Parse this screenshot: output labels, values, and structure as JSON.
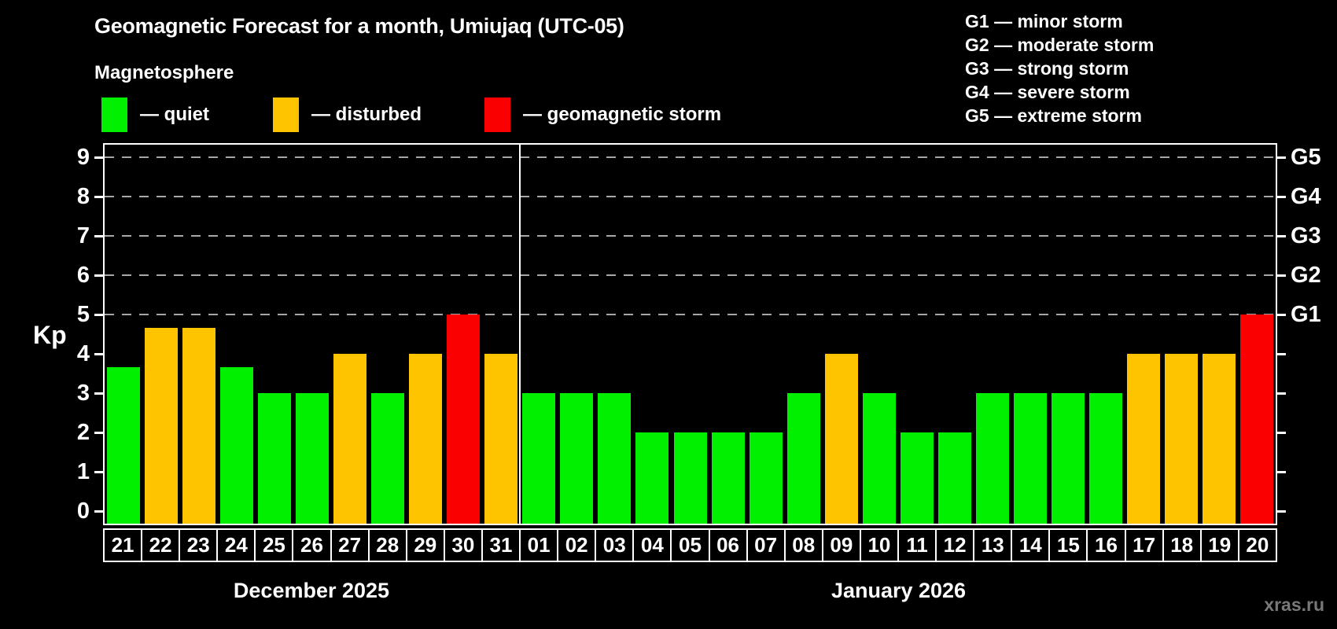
{
  "title": "Geomagnetic Forecast for a month, Umiujaq (UTC-05)",
  "legend": {
    "heading": "Magnetosphere",
    "items": [
      {
        "status": "quiet",
        "label": "— quiet"
      },
      {
        "status": "disturbed",
        "label": "— disturbed"
      },
      {
        "status": "storm",
        "label": "— geomagnetic storm"
      }
    ]
  },
  "g_legend": {
    "items": [
      "G1 — minor storm",
      "G2 — moderate storm",
      "G3 — strong storm",
      "G4 — severe storm",
      "G5 — extreme storm"
    ]
  },
  "axes": {
    "kp_label": "Kp",
    "y_ticks": [
      0,
      1,
      2,
      3,
      4,
      5,
      6,
      7,
      8,
      9
    ],
    "right_axis_labels": [
      {
        "label": "G1",
        "kp": 5
      },
      {
        "label": "G2",
        "kp": 6
      },
      {
        "label": "G3",
        "kp": 7
      },
      {
        "label": "G4",
        "kp": 8
      },
      {
        "label": "G5",
        "kp": 9
      }
    ]
  },
  "watermark": "xras.ru",
  "chart_data": {
    "type": "bar",
    "title": "Geomagnetic Forecast for a month, Umiujaq (UTC-05)",
    "ylabel": "Kp",
    "ylim": [
      0,
      9
    ],
    "grid_kp": [
      5,
      6,
      7,
      8,
      9
    ],
    "grid_style": "dashed",
    "legend_position": "top",
    "status_colors": {
      "quiet": "#00f000",
      "disturbed": "#ffc400",
      "storm": "#fa0000"
    },
    "months": [
      {
        "label": "December 2025",
        "days": [
          "21",
          "22",
          "23",
          "24",
          "25",
          "26",
          "27",
          "28",
          "29",
          "30",
          "31"
        ],
        "values": [
          3.67,
          4.67,
          4.67,
          3.67,
          3,
          3,
          4,
          3,
          4,
          5,
          4
        ],
        "statuses": [
          "quiet",
          "disturbed",
          "disturbed",
          "quiet",
          "quiet",
          "quiet",
          "disturbed",
          "quiet",
          "disturbed",
          "storm",
          "disturbed"
        ]
      },
      {
        "label": "January 2026",
        "days": [
          "01",
          "02",
          "03",
          "04",
          "05",
          "06",
          "07",
          "08",
          "09",
          "10",
          "11",
          "12",
          "13",
          "14",
          "15",
          "16",
          "17",
          "18",
          "19",
          "20"
        ],
        "values": [
          3,
          3,
          3,
          2,
          2,
          2,
          2,
          3,
          4,
          3,
          2,
          2,
          3,
          3,
          3,
          3,
          4,
          4,
          4,
          5
        ],
        "statuses": [
          "quiet",
          "quiet",
          "quiet",
          "quiet",
          "quiet",
          "quiet",
          "quiet",
          "quiet",
          "disturbed",
          "quiet",
          "quiet",
          "quiet",
          "quiet",
          "quiet",
          "quiet",
          "quiet",
          "disturbed",
          "disturbed",
          "disturbed",
          "storm"
        ]
      }
    ]
  }
}
